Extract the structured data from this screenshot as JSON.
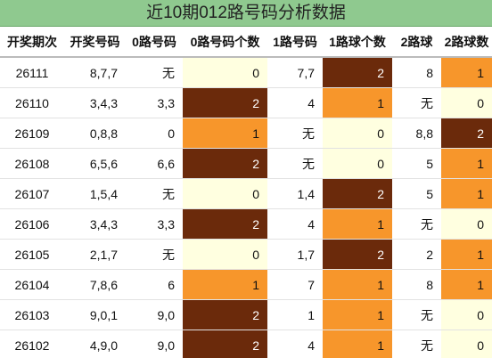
{
  "title": "近10期012路号码分析数据",
  "table": {
    "header": [
      "开奖期次",
      "开奖号码",
      "0路号码",
      "0路号码个数",
      "1路号码",
      "1路球个数",
      "2路球",
      "2路球数"
    ],
    "rows": [
      [
        "26111",
        "8,7,7",
        "无",
        0,
        "7,7",
        2,
        "8",
        1
      ],
      [
        "26110",
        "3,4,3",
        "3,3",
        2,
        "4",
        1,
        "无",
        0
      ],
      [
        "26109",
        "0,8,8",
        "0",
        1,
        "无",
        0,
        "8,8",
        2
      ],
      [
        "26108",
        "6,5,6",
        "6,6",
        2,
        "无",
        0,
        "5",
        1
      ],
      [
        "26107",
        "1,5,4",
        "无",
        0,
        "1,4",
        2,
        "5",
        1
      ],
      [
        "26106",
        "3,4,3",
        "3,3",
        2,
        "4",
        1,
        "无",
        0
      ],
      [
        "26105",
        "2,1,7",
        "无",
        0,
        "1,7",
        2,
        "2",
        1
      ],
      [
        "26104",
        "7,8,6",
        "6",
        1,
        "7",
        1,
        "8",
        1
      ],
      [
        "26103",
        "9,0,1",
        "9,0",
        2,
        "1",
        1,
        "无",
        0
      ],
      [
        "26102",
        "4,9,0",
        "9,0",
        2,
        "4",
        1,
        "无",
        0
      ]
    ]
  }
}
